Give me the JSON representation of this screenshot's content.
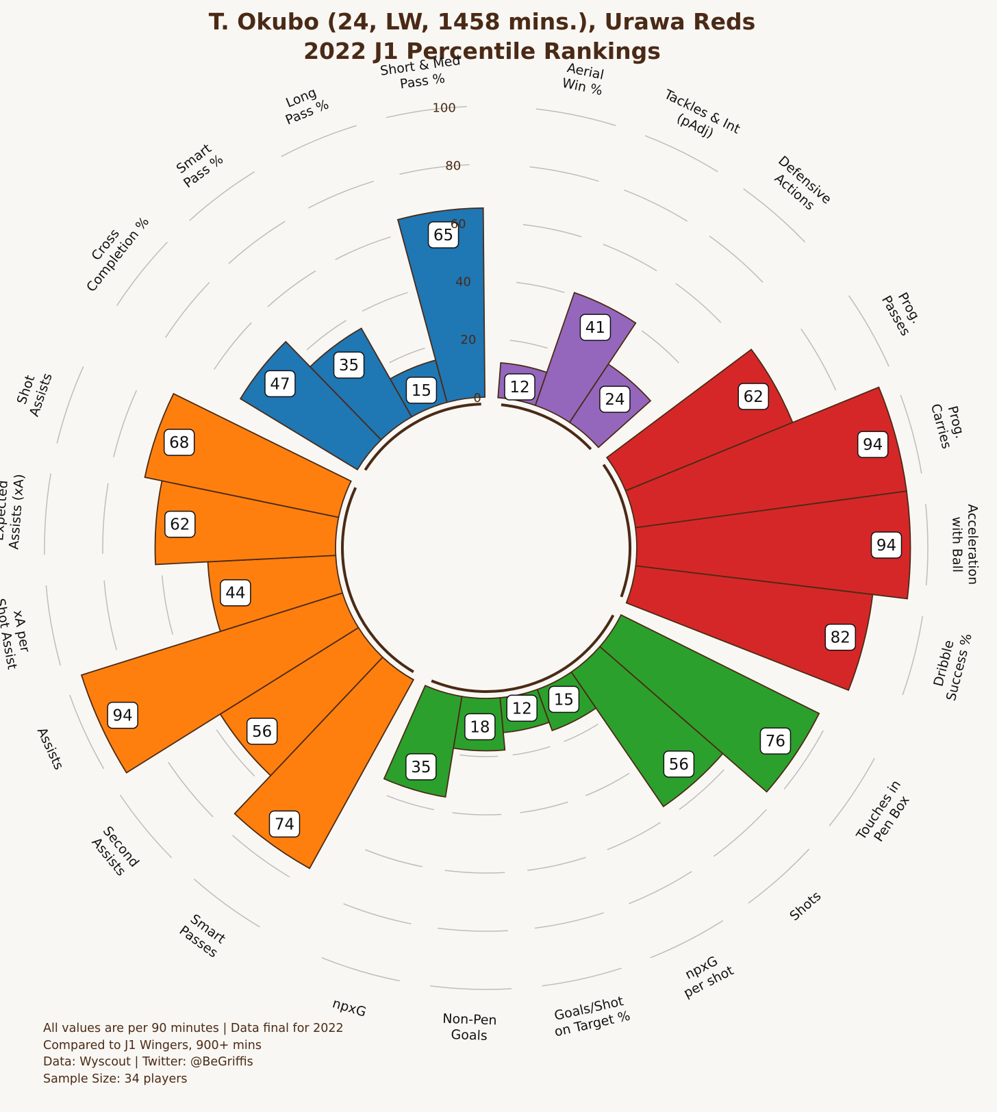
{
  "title": {
    "line1": "T. Okubo (24, LW, 1458 mins.), Urawa Reds",
    "line2": "2022 J1 Percentile Rankings"
  },
  "footnote": [
    "All values are per 90 minutes | Data final for 2022",
    "Compared to J1 Wingers, 900+ mins",
    "Data: Wyscout | Twitter: @BeGriffis",
    "Sample Size: 34 players"
  ],
  "chart_data": {
    "type": "bar",
    "subtype": "polar-percentile-pizza",
    "rlim": [
      0,
      100
    ],
    "radial_ticks": [
      0,
      20,
      40,
      60,
      80,
      100
    ],
    "grid": true,
    "colors": {
      "passing": "#1f77b4",
      "defending": "#9467bd",
      "carrying": "#d62728",
      "shooting": "#2ca02c",
      "creating": "#ff7f0e",
      "edge": "#4a2a16",
      "background": "#f9f7f3"
    },
    "groups": [
      {
        "name": "",
        "color_key": "defending",
        "items": [
          {
            "label": "Aerial\nWin %",
            "value": 12
          },
          {
            "label": "Tackles & Int\n(pAdj)",
            "value": 41
          },
          {
            "label": "Defensive\nActions",
            "value": 24
          }
        ]
      },
      {
        "name": "",
        "color_key": "carrying",
        "items": [
          {
            "label": "Prog.\nPasses",
            "value": 62
          },
          {
            "label": "Prog.\nCarries",
            "value": 94
          },
          {
            "label": "Acceleration\nwith Ball",
            "value": 94
          },
          {
            "label": "Dribble\nSuccess %",
            "value": 82
          }
        ]
      },
      {
        "name": "",
        "color_key": "shooting",
        "items": [
          {
            "label": "Touches in\nPen Box",
            "value": 76
          },
          {
            "label": "Shots",
            "value": 56
          },
          {
            "label": "npxG\nper shot",
            "value": 15
          },
          {
            "label": "Goals/Shot\non Target %",
            "value": 12
          },
          {
            "label": "Non-Pen\nGoals",
            "value": 18
          },
          {
            "label": "npxG",
            "value": 35
          }
        ]
      },
      {
        "name": "",
        "color_key": "creating",
        "items": [
          {
            "label": "Smart\nPasses",
            "value": 74
          },
          {
            "label": "Second\nAssists",
            "value": 56
          },
          {
            "label": "Assists",
            "value": 94
          },
          {
            "label": "xA per\nShot Assist",
            "value": 44
          },
          {
            "label": "Expected\nAssists (xA)",
            "value": 62
          },
          {
            "label": "Shot\nAssists",
            "value": 68
          }
        ]
      },
      {
        "name": "",
        "color_key": "passing",
        "items": [
          {
            "label": "Cross\nCompletion %",
            "value": 47
          },
          {
            "label": "Smart\nPass %",
            "value": 35
          },
          {
            "label": "Long\nPass %",
            "value": 15
          },
          {
            "label": "Short & Med\nPass %",
            "value": 65
          }
        ]
      }
    ]
  }
}
